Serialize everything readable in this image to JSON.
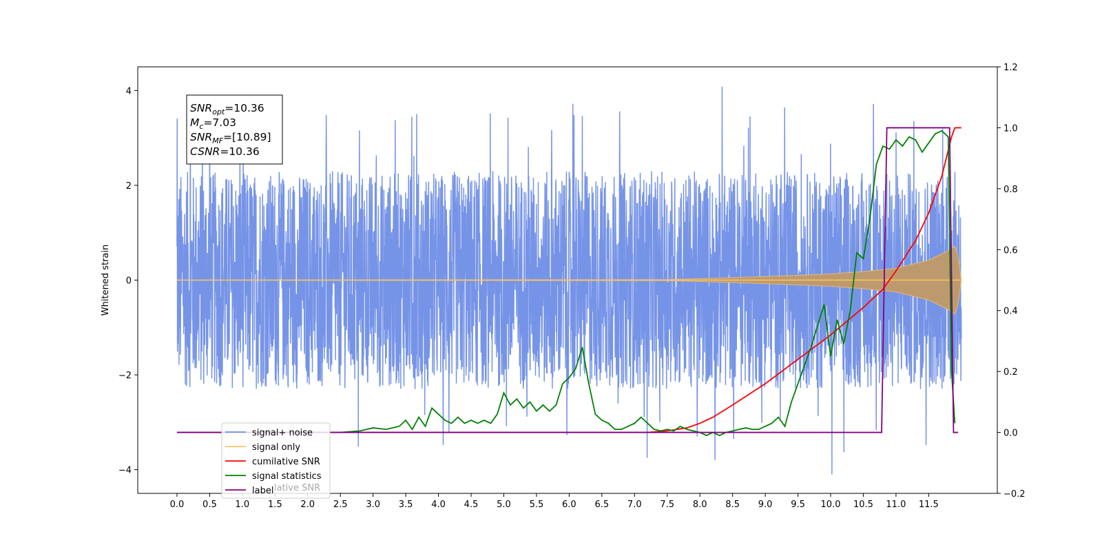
{
  "chart_data": {
    "type": "line",
    "title": "",
    "xlabel": "",
    "ylabel": "Whitened strain",
    "ylabel_right": "",
    "xlim": [
      -0.6,
      12.55
    ],
    "ylim": [
      -4.5,
      4.5
    ],
    "ylim_right": [
      -0.2,
      1.2
    ],
    "x_ticks": [
      0.0,
      0.5,
      1.0,
      1.5,
      2.0,
      2.5,
      3.0,
      3.5,
      4.0,
      4.5,
      5.0,
      5.5,
      6.0,
      6.5,
      7.0,
      7.5,
      8.0,
      8.5,
      9.0,
      9.5,
      10.0,
      10.5,
      11.0,
      11.5
    ],
    "x_tick_labels": [
      "0.0",
      "0.5",
      "1.0",
      "1.5",
      "2.0",
      "2.5",
      "3.0",
      "3.5",
      "4.0",
      "4.5",
      "5.0",
      "5.5",
      "6.0",
      "6.5",
      "7.0",
      "7.5",
      "8.0",
      "8.5",
      "9.0",
      "9.5",
      "10.0",
      "10.5",
      "11.0",
      "11.5"
    ],
    "y_ticks": [
      -4,
      -2,
      0,
      2,
      4
    ],
    "y_tick_labels": [
      "−4",
      "−2",
      "0",
      "2",
      "4"
    ],
    "y_right_ticks": [
      -0.2,
      0.0,
      0.2,
      0.4,
      0.6,
      0.8,
      1.0,
      1.2
    ],
    "y_right_tick_labels": [
      "−0.2",
      "0.0",
      "0.2",
      "0.4",
      "0.6",
      "0.8",
      "1.0",
      "1.2"
    ],
    "grid": false,
    "legend_position": "lower-left",
    "annotation": {
      "lines": [
        {
          "main": "SNR",
          "sub": "opt",
          "rest": "=10.36"
        },
        {
          "main": "M",
          "sub": "c",
          "rest": "=7.03"
        },
        {
          "main": "SNR",
          "sub": "MF",
          "rest": "=[10.89]"
        },
        {
          "main": "CSNR",
          "sub": "",
          "rest": "=10.36"
        }
      ]
    },
    "legend": [
      {
        "label": "signal+ noise",
        "color": "#6f8ee6"
      },
      {
        "label": "signal only",
        "color": "#ffc55e"
      },
      {
        "label": "cumilative SNR",
        "color": "#ff0000"
      },
      {
        "label": "signal statistics",
        "color": "#008000"
      },
      {
        "label": "label",
        "color": "#800080"
      }
    ],
    "legend_overlap_text": "lative SNR",
    "series": [
      {
        "name": "signal+ noise",
        "axis": "left",
        "color": "#6f8ee6",
        "x_range": [
          0.0,
          12.0
        ],
        "noise_band": [
          -2.3,
          2.3
        ],
        "max_peak": 4.08,
        "min_peak": -4.1
      },
      {
        "name": "signal only",
        "axis": "left",
        "color": "#ffc55e",
        "x_range": [
          0.0,
          12.0
        ],
        "envelope": [
          [
            0.0,
            0.0
          ],
          [
            7.5,
            0.01
          ],
          [
            8.5,
            0.05
          ],
          [
            9.5,
            0.1
          ],
          [
            10.0,
            0.13
          ],
          [
            10.5,
            0.18
          ],
          [
            11.0,
            0.25
          ],
          [
            11.5,
            0.42
          ],
          [
            11.8,
            0.62
          ],
          [
            11.9,
            0.72
          ],
          [
            11.95,
            0.5
          ],
          [
            12.0,
            0.0
          ]
        ]
      },
      {
        "name": "cumilative SNR",
        "axis": "right",
        "color": "#ff0000",
        "x": [
          0.0,
          7.0,
          7.2,
          7.5,
          7.8,
          8.0,
          8.2,
          8.5,
          9.0,
          9.5,
          10.0,
          10.5,
          10.8,
          11.0,
          11.3,
          11.5,
          11.7,
          11.85,
          11.9,
          12.0
        ],
        "values": [
          0.0,
          0.0,
          0.0,
          0.005,
          0.015,
          0.03,
          0.05,
          0.09,
          0.16,
          0.24,
          0.32,
          0.41,
          0.47,
          0.53,
          0.63,
          0.72,
          0.84,
          0.97,
          1.0,
          1.0
        ]
      },
      {
        "name": "signal statistics",
        "axis": "right",
        "color": "#008000",
        "x": [
          0.0,
          2.5,
          2.8,
          3.0,
          3.2,
          3.4,
          3.5,
          3.6,
          3.7,
          3.8,
          3.9,
          4.0,
          4.1,
          4.2,
          4.3,
          4.4,
          4.5,
          4.6,
          4.7,
          4.8,
          4.9,
          5.0,
          5.1,
          5.2,
          5.3,
          5.4,
          5.5,
          5.6,
          5.7,
          5.8,
          5.9,
          6.0,
          6.1,
          6.2,
          6.3,
          6.4,
          6.5,
          6.6,
          6.7,
          6.8,
          6.9,
          7.0,
          7.1,
          7.2,
          7.3,
          7.4,
          7.5,
          7.6,
          7.7,
          7.8,
          7.9,
          8.0,
          8.1,
          8.2,
          8.3,
          8.4,
          8.5,
          8.6,
          8.7,
          8.8,
          8.9,
          9.0,
          9.1,
          9.2,
          9.3,
          9.4,
          9.5,
          9.6,
          9.7,
          9.8,
          9.9,
          10.0,
          10.1,
          10.2,
          10.3,
          10.4,
          10.5,
          10.6,
          10.7,
          10.8,
          10.9,
          11.0,
          11.1,
          11.2,
          11.3,
          11.4,
          11.5,
          11.6,
          11.7,
          11.8,
          11.85,
          11.9
        ],
        "values": [
          0.0,
          0.0,
          0.005,
          0.015,
          0.01,
          0.02,
          0.04,
          0.01,
          0.05,
          0.02,
          0.08,
          0.06,
          0.04,
          0.03,
          0.05,
          0.03,
          0.04,
          0.03,
          0.04,
          0.03,
          0.06,
          0.13,
          0.09,
          0.11,
          0.08,
          0.1,
          0.07,
          0.09,
          0.07,
          0.09,
          0.16,
          0.18,
          0.21,
          0.28,
          0.16,
          0.06,
          0.04,
          0.03,
          0.01,
          0.01,
          0.02,
          0.03,
          0.05,
          0.03,
          0.01,
          0.005,
          0.01,
          0.005,
          0.02,
          0.01,
          0.005,
          0.0,
          -0.01,
          0.0,
          -0.01,
          0.0,
          0.005,
          0.01,
          0.015,
          0.01,
          0.01,
          0.02,
          0.03,
          0.05,
          0.02,
          0.1,
          0.16,
          0.22,
          0.28,
          0.35,
          0.42,
          0.25,
          0.37,
          0.29,
          0.4,
          0.59,
          0.57,
          0.7,
          0.88,
          0.94,
          0.93,
          0.96,
          0.94,
          0.97,
          0.96,
          0.92,
          0.95,
          0.98,
          0.99,
          0.97,
          0.2,
          0.03
        ]
      },
      {
        "name": "label",
        "axis": "right",
        "color": "#800080",
        "x": [
          0.0,
          10.78,
          10.86,
          11.82,
          11.88,
          11.95
        ],
        "values": [
          0.0,
          0.0,
          1.0,
          1.0,
          0.0,
          0.0
        ]
      }
    ]
  }
}
